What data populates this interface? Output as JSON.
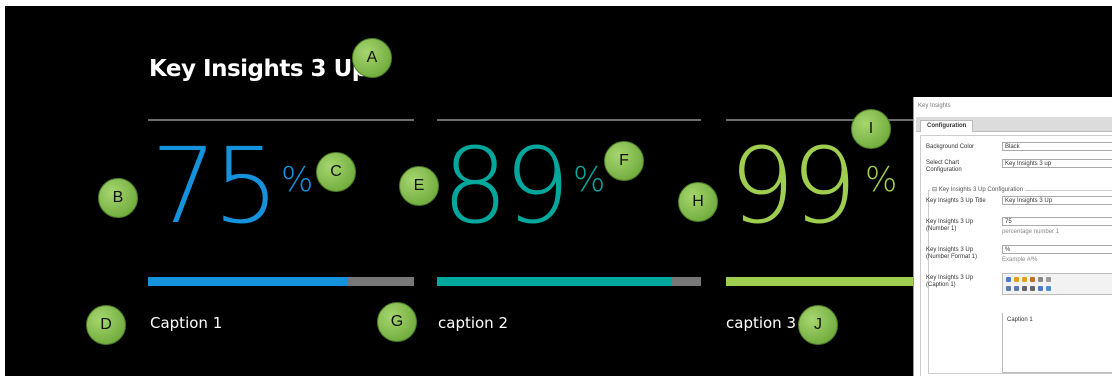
{
  "title": "Key Insights 3 Up",
  "insights": [
    {
      "number": "75",
      "unit": "%",
      "caption": "Caption 1",
      "progress": 0.75,
      "color": "#1592dc"
    },
    {
      "number": "89",
      "unit": "%",
      "caption": "caption 2",
      "progress": 0.89,
      "color": "#00a79d"
    },
    {
      "number": "99",
      "unit": "%",
      "caption": "caption 3",
      "progress": 0.99,
      "color": "#9fcd50"
    }
  ],
  "markers": {
    "a": "A",
    "b": "B",
    "c": "C",
    "d": "D",
    "e": "E",
    "f": "F",
    "g": "G",
    "h": "H",
    "i": "I",
    "j": "J"
  },
  "dialog": {
    "title": "Key Insights",
    "tab": "Configuration",
    "background_color_label": "Background Color",
    "background_color_value": "Black",
    "chart_config_label": "Select Chart Configuration",
    "chart_config_value": "Key Insights 3 up",
    "section_legend": "Key Insights 3 Up Configuration",
    "title_label": "Key Insights 3 Up Title",
    "title_value": "Key Insights 3 Up",
    "number_label": "Key Insights 3 Up (Number 1)",
    "number_value": "75",
    "number_hint": "percentage number 1",
    "format_label": "Key Insights 3 Up (Number Format 1)",
    "format_value": "%",
    "format_hint": "Example #/%",
    "caption_label": "Key Insights 3 Up (Caption 1)",
    "caption_value": "Caption 1"
  }
}
